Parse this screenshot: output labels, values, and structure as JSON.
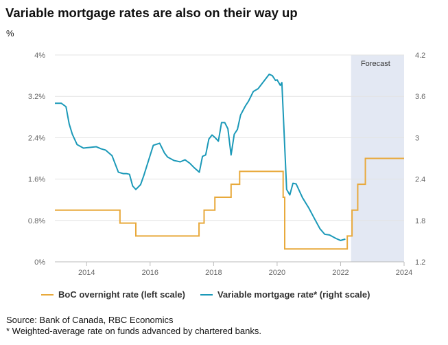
{
  "title": "Variable mortgage rates are also on their way up",
  "unit": "%",
  "colors": {
    "boc": "#E8A93B",
    "mortgage": "#1B99B8",
    "forecast_bg": "#E3E8F3",
    "grid": "#E3E3E3"
  },
  "legend": [
    {
      "label": "BoC overnight rate (left scale)",
      "color": "#E8A93B"
    },
    {
      "label": "Variable mortgage rate* (right scale)",
      "color": "#1B99B8"
    }
  ],
  "footer": {
    "source": "Source: Bank of Canada, RBC Economics",
    "note": " * Weighted-average rate on funds advanced by chartered banks."
  },
  "chart_data": {
    "type": "line",
    "title": "Variable mortgage rates are also on their way up",
    "ylabel": "%",
    "xlim": [
      2013.0,
      2024.0
    ],
    "x_ticks": [
      2014,
      2016,
      2018,
      2020,
      2022,
      2024
    ],
    "left_axis": {
      "ylim": [
        0,
        4
      ],
      "ticks": [
        "0%",
        "0.8%",
        "1.6%",
        "2.4%",
        "3.2%",
        "4%"
      ]
    },
    "right_axis": {
      "ylim": [
        1.2,
        4.2
      ],
      "ticks": [
        "1.2",
        "1.8",
        "2.4",
        "3",
        "3.6",
        "4.2"
      ]
    },
    "forecast": {
      "label": "Forecast",
      "start": 2022.33,
      "end": 2024.0
    },
    "grid": true,
    "legend_position": "bottom",
    "series": [
      {
        "name": "BoC overnight rate (left scale)",
        "axis": "left",
        "step": true,
        "x": [
          2013.0,
          2015.05,
          2015.55,
          2017.54,
          2017.7,
          2018.04,
          2018.55,
          2018.82,
          2020.19,
          2020.24,
          2022.21,
          2022.36,
          2022.45,
          2022.54,
          2022.62,
          2022.78,
          2024.0
        ],
        "y": [
          1.0,
          0.75,
          0.5,
          0.75,
          1.0,
          1.25,
          1.5,
          1.75,
          1.25,
          0.25,
          0.5,
          1.0,
          1.0,
          1.5,
          1.5,
          2.0,
          2.0
        ]
      },
      {
        "name": "Variable mortgage rate* (right scale)",
        "axis": "right",
        "x": [
          2013.0,
          2013.2,
          2013.35,
          2013.45,
          2013.55,
          2013.7,
          2013.9,
          2014.1,
          2014.3,
          2014.45,
          2014.6,
          2014.8,
          2015.0,
          2015.15,
          2015.25,
          2015.35,
          2015.45,
          2015.55,
          2015.7,
          2015.8,
          2015.95,
          2016.1,
          2016.3,
          2016.45,
          2016.55,
          2016.75,
          2016.95,
          2017.1,
          2017.25,
          2017.4,
          2017.55,
          2017.65,
          2017.75,
          2017.85,
          2017.95,
          2018.05,
          2018.15,
          2018.25,
          2018.35,
          2018.45,
          2018.55,
          2018.65,
          2018.75,
          2018.85,
          2019.0,
          2019.1,
          2019.25,
          2019.4,
          2019.55,
          2019.65,
          2019.75,
          2019.85,
          2019.95,
          2020.0,
          2020.1,
          2020.15,
          2020.3,
          2020.4,
          2020.5,
          2020.6,
          2020.8,
          2021.0,
          2021.15,
          2021.35,
          2021.5,
          2021.65,
          2021.85,
          2022.0,
          2022.15
        ],
        "y": [
          3.5,
          3.5,
          3.45,
          3.2,
          3.05,
          2.9,
          2.85,
          2.86,
          2.87,
          2.84,
          2.82,
          2.74,
          2.5,
          2.48,
          2.48,
          2.47,
          2.3,
          2.25,
          2.32,
          2.45,
          2.67,
          2.89,
          2.92,
          2.78,
          2.72,
          2.67,
          2.65,
          2.68,
          2.63,
          2.56,
          2.5,
          2.73,
          2.75,
          2.98,
          3.04,
          3.0,
          2.95,
          3.22,
          3.22,
          3.13,
          2.75,
          3.05,
          3.12,
          3.33,
          3.46,
          3.53,
          3.67,
          3.71,
          3.8,
          3.86,
          3.92,
          3.9,
          3.83,
          3.84,
          3.76,
          3.8,
          2.25,
          2.17,
          2.34,
          2.33,
          2.13,
          1.98,
          1.85,
          1.68,
          1.6,
          1.59,
          1.54,
          1.51,
          1.53
        ]
      }
    ]
  }
}
